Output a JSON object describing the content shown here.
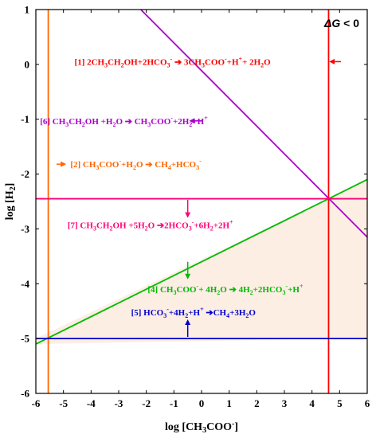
{
  "chart_data": {
    "type": "line",
    "xlabel_main": "log [CH",
    "xlabel_sub": "3",
    "xlabel_tail": "COO",
    "xlabel_sup": "-",
    "xlabel_close": "]",
    "ylabel_main": "log [H",
    "ylabel_sub": "2",
    "ylabel_close": "]",
    "xlim": [
      -6,
      6
    ],
    "ylim": [
      -6,
      1
    ],
    "xticks": [
      -6,
      -5,
      -4,
      -3,
      -2,
      -1,
      0,
      1,
      2,
      3,
      4,
      5,
      6
    ],
    "yticks": [
      -6,
      -5,
      -4,
      -3,
      -2,
      -1,
      0,
      1
    ],
    "annotation_dg_symbol": "ΔG",
    "annotation_dg_text": " < 0",
    "colors": {
      "r1": "#ff0000",
      "r2": "#ff6600",
      "r4": "#00bb00",
      "r5": "#0000cc",
      "r6": "#aa00cc",
      "r7": "#ff0077",
      "region": "#fdeee4"
    },
    "feasible_region": [
      [
        -6,
        -5
      ],
      [
        -6,
        -5.1
      ],
      [
        4.6,
        -5
      ],
      [
        6,
        -5
      ],
      [
        6,
        -2.1
      ],
      [
        4.6,
        -2.45
      ]
    ],
    "series": [
      {
        "id": "r1",
        "type": "vline",
        "x": 4.6,
        "color": "#ff0000"
      },
      {
        "id": "r2",
        "type": "vline",
        "x": -5.55,
        "color": "#ff6600"
      },
      {
        "id": "r4",
        "type": "line",
        "points": [
          [
            -6,
            -5.1
          ],
          [
            6,
            -2.1
          ]
        ],
        "color": "#00bb00"
      },
      {
        "id": "r5",
        "type": "hline",
        "y": -5.0,
        "color": "#0000cc"
      },
      {
        "id": "r6",
        "type": "line",
        "points": [
          [
            -2.2,
            1
          ],
          [
            6,
            -3.15
          ]
        ],
        "color": "#aa00cc"
      },
      {
        "id": "r7",
        "type": "hline",
        "y": -2.45,
        "color": "#ff0077"
      }
    ],
    "arrows": [
      {
        "id": "a1",
        "color": "#ff0000",
        "from": [
          5.05,
          0.05
        ],
        "to": [
          4.62,
          0.05
        ]
      },
      {
        "id": "a2",
        "color": "#ff6600",
        "from": [
          -5.25,
          -1.82
        ],
        "to": [
          -4.9,
          -1.82
        ]
      },
      {
        "id": "a4",
        "color": "#00bb00",
        "from": [
          -0.5,
          -3.6
        ],
        "to": [
          -0.5,
          -3.92
        ]
      },
      {
        "id": "a5",
        "color": "#0000cc",
        "from": [
          -0.5,
          -4.97
        ],
        "to": [
          -0.5,
          -4.65
        ]
      },
      {
        "id": "a6",
        "color": "#aa00cc",
        "from": [
          0.05,
          -1.03
        ],
        "to": [
          -0.45,
          -1.03
        ]
      },
      {
        "id": "a7",
        "color": "#ff0077",
        "from": [
          -0.5,
          -2.47
        ],
        "to": [
          -0.5,
          -2.8
        ]
      }
    ],
    "reactions": [
      {
        "id": "r1",
        "color": "#ff0000",
        "x": -4.6,
        "y": 0.05,
        "parts": [
          {
            "t": "[1] 2CH"
          },
          {
            "t": "3",
            "s": "sub"
          },
          {
            "t": "CH"
          },
          {
            "t": "2",
            "s": "sub"
          },
          {
            "t": "OH+2HCO"
          },
          {
            "t": "3",
            "s": "sub"
          },
          {
            "t": "-",
            "s": "sup"
          },
          {
            "t": " ➔ "
          },
          {
            "t": "3CH"
          },
          {
            "t": "3",
            "s": "sub"
          },
          {
            "t": "COO"
          },
          {
            "t": "-",
            "s": "sup"
          },
          {
            "t": "+H"
          },
          {
            "t": "+",
            "s": "sup"
          },
          {
            "t": "+ 2H"
          },
          {
            "t": "2",
            "s": "sub"
          },
          {
            "t": "O"
          }
        ]
      },
      {
        "id": "r6",
        "color": "#aa00cc",
        "x": -5.85,
        "y": -1.03,
        "parts": [
          {
            "t": "[6] CH"
          },
          {
            "t": "3",
            "s": "sub"
          },
          {
            "t": "CH"
          },
          {
            "t": "2",
            "s": "sub"
          },
          {
            "t": "OH +H"
          },
          {
            "t": "2",
            "s": "sub"
          },
          {
            "t": "O"
          },
          {
            "t": " ➔ "
          },
          {
            "t": "CH"
          },
          {
            "t": "3",
            "s": "sub"
          },
          {
            "t": "COO"
          },
          {
            "t": "-",
            "s": "sup"
          },
          {
            "t": "+2H"
          },
          {
            "t": "2",
            "s": "sub"
          },
          {
            "t": "+H"
          },
          {
            "t": "+",
            "s": "sup"
          }
        ]
      },
      {
        "id": "r2",
        "color": "#ff6600",
        "x": -4.75,
        "y": -1.82,
        "parts": [
          {
            "t": "[2] CH"
          },
          {
            "t": "3",
            "s": "sub"
          },
          {
            "t": "COO"
          },
          {
            "t": "-",
            "s": "sup"
          },
          {
            "t": "+H"
          },
          {
            "t": "2",
            "s": "sub"
          },
          {
            "t": "O"
          },
          {
            "t": " ➔ "
          },
          {
            "t": "CH"
          },
          {
            "t": "4",
            "s": "sub"
          },
          {
            "t": "+HCO"
          },
          {
            "t": "3",
            "s": "sub"
          },
          {
            "t": "-",
            "s": "sup"
          }
        ]
      },
      {
        "id": "r7",
        "color": "#ff0077",
        "x": -4.85,
        "y": -2.93,
        "parts": [
          {
            "t": "[7] CH"
          },
          {
            "t": "3",
            "s": "sub"
          },
          {
            "t": "CH"
          },
          {
            "t": "2",
            "s": "sub"
          },
          {
            "t": "OH +5H"
          },
          {
            "t": "2",
            "s": "sub"
          },
          {
            "t": "O"
          },
          {
            "t": " ➔"
          },
          {
            "t": "2HCO"
          },
          {
            "t": "3",
            "s": "sub"
          },
          {
            "t": "-",
            "s": "sup"
          },
          {
            "t": "+6H"
          },
          {
            "t": "2",
            "s": "sub"
          },
          {
            "t": "+2H"
          },
          {
            "t": "+",
            "s": "sup"
          }
        ]
      },
      {
        "id": "r4",
        "color": "#00bb00",
        "x": -1.95,
        "y": -4.1,
        "parts": [
          {
            "t": "[4] CH"
          },
          {
            "t": "3",
            "s": "sub"
          },
          {
            "t": "COO"
          },
          {
            "t": "-",
            "s": "sup"
          },
          {
            "t": "+ 4H"
          },
          {
            "t": "2",
            "s": "sub"
          },
          {
            "t": "O"
          },
          {
            "t": " ➔ "
          },
          {
            "t": "4H"
          },
          {
            "t": "2",
            "s": "sub"
          },
          {
            "t": "+2HCO"
          },
          {
            "t": "3",
            "s": "sub"
          },
          {
            "t": "-",
            "s": "sup"
          },
          {
            "t": "+H"
          },
          {
            "t": "+",
            "s": "sup"
          }
        ]
      },
      {
        "id": "r5",
        "color": "#0000cc",
        "x": -2.55,
        "y": -4.52,
        "parts": [
          {
            "t": "[5] HCO"
          },
          {
            "t": "3",
            "s": "sub"
          },
          {
            "t": "-",
            "s": "sup"
          },
          {
            "t": "+4H"
          },
          {
            "t": "2",
            "s": "sub"
          },
          {
            "t": "+H"
          },
          {
            "t": "+",
            "s": "sup"
          },
          {
            "t": " ➔"
          },
          {
            "t": "CH"
          },
          {
            "t": "4",
            "s": "sub"
          },
          {
            "t": "+3H"
          },
          {
            "t": "2",
            "s": "sub"
          },
          {
            "t": "O"
          }
        ]
      }
    ]
  }
}
